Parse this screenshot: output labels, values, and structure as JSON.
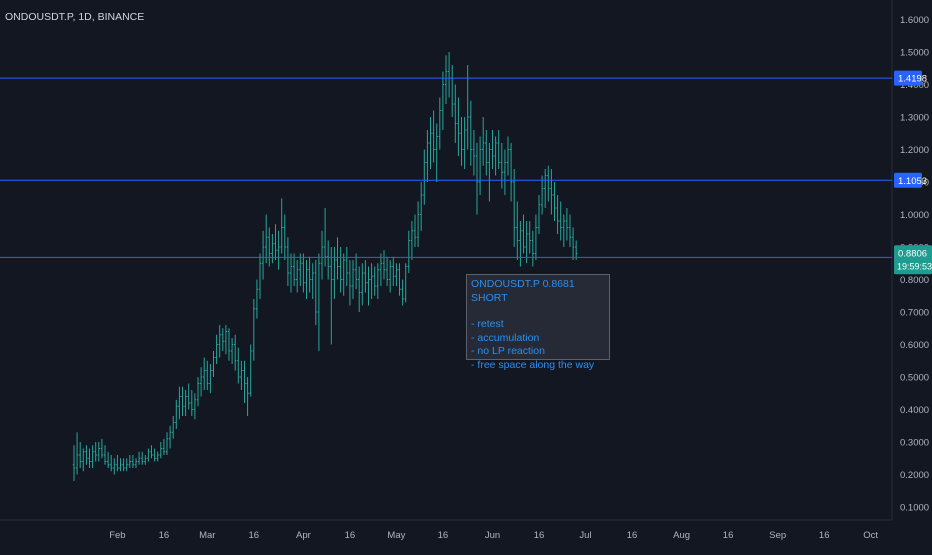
{
  "chart_data": {
    "type": "candlestick",
    "title": "ONDOUSDT.P, 1D, BINANCE",
    "interval": "1D",
    "x_ticks": [
      "Feb",
      "16",
      "Mar",
      "16",
      "Apr",
      "16",
      "May",
      "16",
      "Jun",
      "16",
      "Jul",
      "16",
      "Aug",
      "16",
      "Sep",
      "16",
      "Oct"
    ],
    "y_ticks": [
      "0.1000",
      "0.2000",
      "0.3000",
      "0.4000",
      "0.5000",
      "0.6000",
      "0.7000",
      "0.8000",
      "0.9000",
      "1.0000",
      "1.1000",
      "1.2000",
      "1.3000",
      "1.4000",
      "1.5000",
      "1.6000"
    ],
    "ylim": [
      0.06,
      1.66
    ],
    "price_scale": "right",
    "grid": false,
    "colors": {
      "background": "#131722",
      "candle": "#26a69a",
      "horizontal_line": "#2962ff",
      "axis_text": "#b2b5be",
      "annotation_text": "#2a8ff0"
    },
    "horizontal_levels": [
      {
        "price": 1.4198,
        "label": "1.4198"
      },
      {
        "price": 1.1053,
        "label": "1.1053"
      },
      {
        "price": 0.8681,
        "label": "0.8681"
      }
    ],
    "last_price": {
      "label": "0.8806",
      "countdown": "19:59:53"
    },
    "annotation": {
      "title": "ONDOUSDT.P 0.8681  SHORT",
      "lines": [
        "- retest",
        "- accumulation",
        "- no LP reaction",
        "- free space along the way"
      ]
    },
    "ohlc_start_date": "2024-01-18",
    "ohlc": [
      [
        0.23,
        0.29,
        0.18,
        0.22
      ],
      [
        0.22,
        0.33,
        0.2,
        0.26
      ],
      [
        0.26,
        0.3,
        0.22,
        0.24
      ],
      [
        0.24,
        0.28,
        0.21,
        0.27
      ],
      [
        0.27,
        0.29,
        0.23,
        0.25
      ],
      [
        0.25,
        0.28,
        0.22,
        0.24
      ],
      [
        0.24,
        0.29,
        0.22,
        0.27
      ],
      [
        0.27,
        0.3,
        0.24,
        0.26
      ],
      [
        0.26,
        0.3,
        0.24,
        0.28
      ],
      [
        0.28,
        0.31,
        0.25,
        0.26
      ],
      [
        0.26,
        0.29,
        0.23,
        0.24
      ],
      [
        0.24,
        0.27,
        0.22,
        0.23
      ],
      [
        0.23,
        0.26,
        0.21,
        0.22
      ],
      [
        0.22,
        0.25,
        0.2,
        0.23
      ],
      [
        0.23,
        0.26,
        0.21,
        0.22
      ],
      [
        0.22,
        0.25,
        0.21,
        0.23
      ],
      [
        0.23,
        0.25,
        0.21,
        0.22
      ],
      [
        0.22,
        0.25,
        0.21,
        0.23
      ],
      [
        0.23,
        0.26,
        0.22,
        0.24
      ],
      [
        0.24,
        0.26,
        0.22,
        0.23
      ],
      [
        0.23,
        0.25,
        0.22,
        0.24
      ],
      [
        0.24,
        0.27,
        0.23,
        0.25
      ],
      [
        0.25,
        0.27,
        0.23,
        0.24
      ],
      [
        0.24,
        0.26,
        0.23,
        0.25
      ],
      [
        0.25,
        0.28,
        0.24,
        0.27
      ],
      [
        0.27,
        0.29,
        0.25,
        0.26
      ],
      [
        0.26,
        0.28,
        0.24,
        0.25
      ],
      [
        0.25,
        0.27,
        0.24,
        0.26
      ],
      [
        0.26,
        0.3,
        0.25,
        0.28
      ],
      [
        0.28,
        0.31,
        0.26,
        0.27
      ],
      [
        0.27,
        0.33,
        0.26,
        0.31
      ],
      [
        0.31,
        0.35,
        0.28,
        0.33
      ],
      [
        0.33,
        0.38,
        0.31,
        0.36
      ],
      [
        0.36,
        0.43,
        0.34,
        0.41
      ],
      [
        0.41,
        0.47,
        0.37,
        0.44
      ],
      [
        0.44,
        0.47,
        0.38,
        0.41
      ],
      [
        0.41,
        0.46,
        0.38,
        0.44
      ],
      [
        0.44,
        0.48,
        0.4,
        0.42
      ],
      [
        0.42,
        0.46,
        0.38,
        0.4
      ],
      [
        0.4,
        0.45,
        0.37,
        0.43
      ],
      [
        0.43,
        0.5,
        0.41,
        0.48
      ],
      [
        0.48,
        0.53,
        0.44,
        0.5
      ],
      [
        0.5,
        0.56,
        0.46,
        0.52
      ],
      [
        0.52,
        0.55,
        0.46,
        0.48
      ],
      [
        0.48,
        0.54,
        0.45,
        0.52
      ],
      [
        0.52,
        0.58,
        0.5,
        0.56
      ],
      [
        0.56,
        0.63,
        0.54,
        0.6
      ],
      [
        0.6,
        0.66,
        0.56,
        0.63
      ],
      [
        0.63,
        0.65,
        0.58,
        0.61
      ],
      [
        0.61,
        0.66,
        0.57,
        0.64
      ],
      [
        0.64,
        0.65,
        0.55,
        0.58
      ],
      [
        0.58,
        0.62,
        0.54,
        0.6
      ],
      [
        0.6,
        0.63,
        0.52,
        0.55
      ],
      [
        0.55,
        0.59,
        0.48,
        0.5
      ],
      [
        0.5,
        0.55,
        0.46,
        0.52
      ],
      [
        0.52,
        0.55,
        0.42,
        0.48
      ],
      [
        0.48,
        0.5,
        0.38,
        0.45
      ],
      [
        0.45,
        0.6,
        0.44,
        0.58
      ],
      [
        0.58,
        0.74,
        0.55,
        0.71
      ],
      [
        0.71,
        0.8,
        0.68,
        0.77
      ],
      [
        0.77,
        0.88,
        0.74,
        0.85
      ],
      [
        0.85,
        0.95,
        0.8,
        0.9
      ],
      [
        0.9,
        1.0,
        0.85,
        0.93
      ],
      [
        0.93,
        0.96,
        0.84,
        0.88
      ],
      [
        0.88,
        0.94,
        0.85,
        0.91
      ],
      [
        0.91,
        0.97,
        0.86,
        0.89
      ],
      [
        0.89,
        0.95,
        0.83,
        0.9
      ],
      [
        0.9,
        1.05,
        0.88,
        0.96
      ],
      [
        0.96,
        1.0,
        0.86,
        0.9
      ],
      [
        0.9,
        0.93,
        0.78,
        0.82
      ],
      [
        0.82,
        0.88,
        0.76,
        0.84
      ],
      [
        0.84,
        0.88,
        0.78,
        0.8
      ],
      [
        0.8,
        0.86,
        0.76,
        0.83
      ],
      [
        0.83,
        0.88,
        0.78,
        0.85
      ],
      [
        0.85,
        0.88,
        0.76,
        0.79
      ],
      [
        0.79,
        0.86,
        0.74,
        0.83
      ],
      [
        0.83,
        0.87,
        0.76,
        0.8
      ],
      [
        0.8,
        0.85,
        0.74,
        0.82
      ],
      [
        0.82,
        0.86,
        0.66,
        0.7
      ],
      [
        0.7,
        0.88,
        0.58,
        0.85
      ],
      [
        0.85,
        0.95,
        0.8,
        0.9
      ],
      [
        0.9,
        1.02,
        0.84,
        0.87
      ],
      [
        0.87,
        0.92,
        0.8,
        0.84
      ],
      [
        0.84,
        0.9,
        0.6,
        0.8
      ],
      [
        0.8,
        0.9,
        0.74,
        0.86
      ],
      [
        0.86,
        0.93,
        0.8,
        0.84
      ],
      [
        0.84,
        0.9,
        0.76,
        0.8
      ],
      [
        0.8,
        0.88,
        0.75,
        0.86
      ],
      [
        0.86,
        0.9,
        0.78,
        0.82
      ],
      [
        0.82,
        0.86,
        0.72,
        0.78
      ],
      [
        0.78,
        0.86,
        0.74,
        0.83
      ],
      [
        0.83,
        0.88,
        0.77,
        0.8
      ],
      [
        0.8,
        0.84,
        0.7,
        0.76
      ],
      [
        0.76,
        0.85,
        0.72,
        0.82
      ],
      [
        0.82,
        0.86,
        0.76,
        0.79
      ],
      [
        0.79,
        0.84,
        0.72,
        0.8
      ],
      [
        0.8,
        0.85,
        0.74,
        0.81
      ],
      [
        0.81,
        0.84,
        0.75,
        0.78
      ],
      [
        0.78,
        0.85,
        0.74,
        0.83
      ],
      [
        0.83,
        0.88,
        0.78,
        0.85
      ],
      [
        0.85,
        0.89,
        0.8,
        0.83
      ],
      [
        0.83,
        0.87,
        0.78,
        0.8
      ],
      [
        0.8,
        0.86,
        0.76,
        0.84
      ],
      [
        0.84,
        0.87,
        0.78,
        0.81
      ],
      [
        0.81,
        0.85,
        0.78,
        0.83
      ],
      [
        0.83,
        0.85,
        0.75,
        0.77
      ],
      [
        0.77,
        0.8,
        0.72,
        0.74
      ],
      [
        0.74,
        0.85,
        0.73,
        0.84
      ],
      [
        0.84,
        0.95,
        0.82,
        0.92
      ],
      [
        0.92,
        0.98,
        0.86,
        0.95
      ],
      [
        0.95,
        1.0,
        0.9,
        0.93
      ],
      [
        0.93,
        1.04,
        0.9,
        1.0
      ],
      [
        1.0,
        1.1,
        0.95,
        1.06
      ],
      [
        1.06,
        1.2,
        1.03,
        1.16
      ],
      [
        1.16,
        1.26,
        1.1,
        1.22
      ],
      [
        1.22,
        1.3,
        1.14,
        1.25
      ],
      [
        1.25,
        1.32,
        1.16,
        1.2
      ],
      [
        1.2,
        1.28,
        1.1,
        1.24
      ],
      [
        1.24,
        1.36,
        1.2,
        1.32
      ],
      [
        1.32,
        1.44,
        1.26,
        1.4
      ],
      [
        1.4,
        1.49,
        1.34,
        1.44
      ],
      [
        1.44,
        1.5,
        1.36,
        1.42
      ],
      [
        1.42,
        1.46,
        1.3,
        1.34
      ],
      [
        1.34,
        1.4,
        1.22,
        1.28
      ],
      [
        1.28,
        1.36,
        1.18,
        1.25
      ],
      [
        1.25,
        1.3,
        1.15,
        1.2
      ],
      [
        1.2,
        1.3,
        1.14,
        1.26
      ],
      [
        1.26,
        1.46,
        1.2,
        1.3
      ],
      [
        1.3,
        1.35,
        1.15,
        1.2
      ],
      [
        1.2,
        1.26,
        1.12,
        1.18
      ],
      [
        1.18,
        1.22,
        1.0,
        1.1
      ],
      [
        1.1,
        1.24,
        1.06,
        1.2
      ],
      [
        1.2,
        1.3,
        1.15,
        1.22
      ],
      [
        1.22,
        1.26,
        1.12,
        1.16
      ],
      [
        1.16,
        1.22,
        1.04,
        1.2
      ],
      [
        1.2,
        1.26,
        1.14,
        1.18
      ],
      [
        1.18,
        1.24,
        1.12,
        1.22
      ],
      [
        1.22,
        1.26,
        1.14,
        1.16
      ],
      [
        1.16,
        1.22,
        1.08,
        1.13
      ],
      [
        1.13,
        1.2,
        1.06,
        1.16
      ],
      [
        1.16,
        1.24,
        1.12,
        1.2
      ],
      [
        1.2,
        1.22,
        1.04,
        1.1
      ],
      [
        1.1,
        1.14,
        0.9,
        0.96
      ],
      [
        0.96,
        1.04,
        0.86,
        0.92
      ],
      [
        0.92,
        0.98,
        0.84,
        0.95
      ],
      [
        0.95,
        1.0,
        0.88,
        0.9
      ],
      [
        0.9,
        0.98,
        0.85,
        0.94
      ],
      [
        0.94,
        0.98,
        0.88,
        0.92
      ],
      [
        0.92,
        0.95,
        0.84,
        0.88
      ],
      [
        0.88,
        1.0,
        0.86,
        0.96
      ],
      [
        0.96,
        1.06,
        0.94,
        1.03
      ],
      [
        1.03,
        1.12,
        1.0,
        1.08
      ],
      [
        1.08,
        1.14,
        1.02,
        1.12
      ],
      [
        1.12,
        1.15,
        1.04,
        1.08
      ],
      [
        1.08,
        1.14,
        1.0,
        1.06
      ],
      [
        1.06,
        1.1,
        0.98,
        1.02
      ],
      [
        1.02,
        1.06,
        0.94,
        0.98
      ],
      [
        0.98,
        1.04,
        0.92,
        0.96
      ],
      [
        0.96,
        1.0,
        0.9,
        0.98
      ],
      [
        0.98,
        1.02,
        0.92,
        0.96
      ],
      [
        0.96,
        1.0,
        0.9,
        0.93
      ],
      [
        0.93,
        0.96,
        0.86,
        0.9
      ],
      [
        0.9,
        0.92,
        0.86,
        0.88
      ]
    ]
  }
}
